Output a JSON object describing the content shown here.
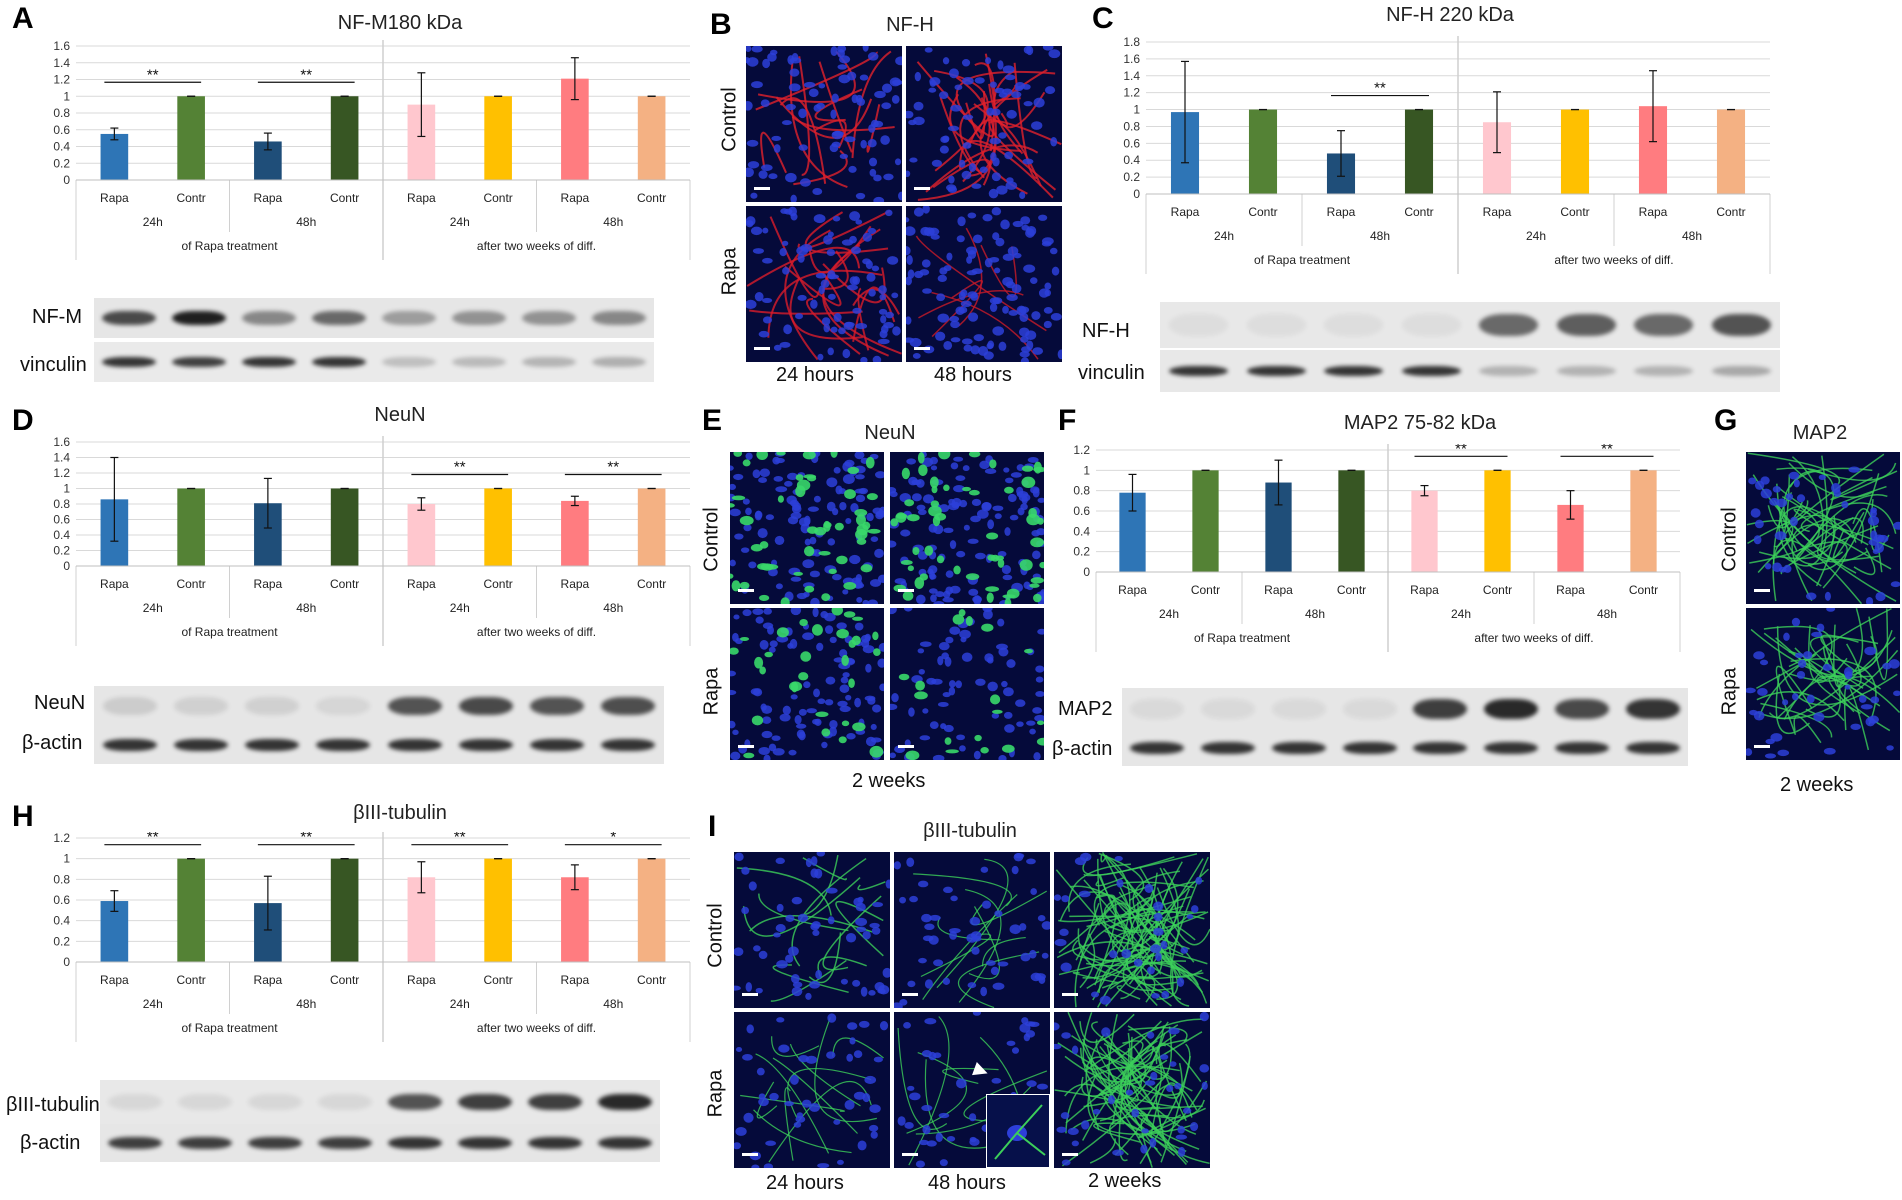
{
  "panels": {
    "A": {
      "letter": "A",
      "title": "NF-M180 kDa",
      "blot_labels": [
        "NF-M",
        "vinculin"
      ]
    },
    "B": {
      "letter": "B",
      "title": "NF-H",
      "rows": [
        "Control",
        "Rapa"
      ],
      "cols": [
        "24 hours",
        "48 hours"
      ]
    },
    "C": {
      "letter": "C",
      "title": "NF-H 220 kDa",
      "blot_labels": [
        "NF-H",
        "vinculin"
      ]
    },
    "D": {
      "letter": "D",
      "title": "NeuN",
      "blot_labels": [
        "NeuN",
        "β-actin"
      ]
    },
    "E": {
      "letter": "E",
      "title": "NeuN",
      "rows": [
        "Control",
        "Rapa"
      ],
      "caption": "2 weeks"
    },
    "F": {
      "letter": "F",
      "title": "MAP2 75-82 kDa",
      "blot_labels": [
        "MAP2",
        "β-actin"
      ]
    },
    "G": {
      "letter": "G",
      "title": "MAP2",
      "rows": [
        "Control",
        "Rapa"
      ],
      "caption": "2 weeks"
    },
    "H": {
      "letter": "H",
      "title": "βIII-tubulin",
      "blot_labels": [
        "βIII-tubulin",
        "β-actin"
      ]
    },
    "I": {
      "letter": "I",
      "title": "βIII-tubulin",
      "rows": [
        "Control",
        "Rapa"
      ],
      "cols": [
        "24 hours",
        "48 hours",
        "2 weeks"
      ]
    }
  },
  "colors": {
    "rapa24_early": "#2e75b6",
    "contr24_early": "#548235",
    "rapa48_early": "#1f4e79",
    "contr48_early": "#375623",
    "rapa24_late": "#ffc7ce",
    "contr24_late": "#ffc000",
    "rapa48_late": "#ff7c80",
    "contr48_late": "#f4b183"
  },
  "chart_data": [
    {
      "id": "A",
      "type": "bar",
      "title": "NF-M180 kDa",
      "categories": [
        "Rapa",
        "Contr",
        "Rapa",
        "Contr",
        "Rapa",
        "Contr",
        "Rapa",
        "Contr"
      ],
      "time_labels": [
        "24h",
        "48h",
        "24h",
        "48h"
      ],
      "group_labels": [
        "of Rapa treatment",
        "after two weeks of diff."
      ],
      "values": [
        0.55,
        1.0,
        0.46,
        1.0,
        0.9,
        1.0,
        1.21,
        1.0
      ],
      "errors": [
        0.07,
        0.0,
        0.1,
        0.0,
        0.38,
        0.0,
        0.25,
        0.0
      ],
      "ylim": [
        0,
        1.6
      ],
      "yticks": [
        "0",
        "0.2",
        "0.4",
        "0.6",
        "0.8",
        "1",
        "1.2",
        "1.4",
        "1.6"
      ],
      "significance": [
        {
          "pair": [
            0,
            1
          ],
          "label": "**"
        },
        {
          "pair": [
            2,
            3
          ],
          "label": "**"
        }
      ]
    },
    {
      "id": "C",
      "type": "bar",
      "title": "NF-H 220 kDa",
      "categories": [
        "Rapa",
        "Contr",
        "Rapa",
        "Contr",
        "Rapa",
        "Contr",
        "Rapa",
        "Contr"
      ],
      "time_labels": [
        "24h",
        "48h",
        "24h",
        "48h"
      ],
      "group_labels": [
        "of Rapa treatment",
        "after two weeks of diff."
      ],
      "values": [
        0.97,
        1.0,
        0.48,
        1.0,
        0.85,
        1.0,
        1.04,
        1.0
      ],
      "errors": [
        0.6,
        0.0,
        0.27,
        0.0,
        0.36,
        0.0,
        0.42,
        0.0
      ],
      "ylim": [
        0,
        1.8
      ],
      "yticks": [
        "0",
        "0.2",
        "0.4",
        "0.6",
        "0.8",
        "1",
        "1.2",
        "1.4",
        "1.6",
        "1.8"
      ],
      "significance": [
        {
          "pair": [
            2,
            3
          ],
          "label": "**"
        }
      ]
    },
    {
      "id": "D",
      "type": "bar",
      "title": "NeuN",
      "categories": [
        "Rapa",
        "Contr",
        "Rapa",
        "Contr",
        "Rapa",
        "Contr",
        "Rapa",
        "Contr"
      ],
      "time_labels": [
        "24h",
        "48h",
        "24h",
        "48h"
      ],
      "group_labels": [
        "of Rapa treatment",
        "after two weeks of diff."
      ],
      "values": [
        0.86,
        1.0,
        0.81,
        1.0,
        0.8,
        1.0,
        0.84,
        1.0
      ],
      "errors": [
        0.54,
        0.0,
        0.32,
        0.0,
        0.08,
        0.0,
        0.06,
        0.0
      ],
      "ylim": [
        0,
        1.6
      ],
      "yticks": [
        "0",
        "0.2",
        "0.4",
        "0.6",
        "0.8",
        "1",
        "1.2",
        "1.4",
        "1.6"
      ],
      "significance": [
        {
          "pair": [
            4,
            5
          ],
          "label": "**"
        },
        {
          "pair": [
            6,
            7
          ],
          "label": "**"
        }
      ]
    },
    {
      "id": "F",
      "type": "bar",
      "title": "MAP2 75-82 kDa",
      "categories": [
        "Rapa",
        "Contr",
        "Rapa",
        "Contr",
        "Rapa",
        "Contr",
        "Rapa",
        "Contr"
      ],
      "time_labels": [
        "24h",
        "48h",
        "24h",
        "48h"
      ],
      "group_labels": [
        "of Rapa treatment",
        "after two weeks of diff."
      ],
      "values": [
        0.78,
        1.0,
        0.88,
        1.0,
        0.8,
        1.0,
        0.66,
        1.0
      ],
      "errors": [
        0.18,
        0.0,
        0.22,
        0.0,
        0.05,
        0.0,
        0.14,
        0.0
      ],
      "ylim": [
        0,
        1.2
      ],
      "yticks": [
        "0",
        "0.2",
        "0.4",
        "0.6",
        "0.8",
        "1",
        "1.2"
      ],
      "significance": [
        {
          "pair": [
            4,
            5
          ],
          "label": "**"
        },
        {
          "pair": [
            6,
            7
          ],
          "label": "**"
        }
      ]
    },
    {
      "id": "H",
      "type": "bar",
      "title": "βIII-tubulin",
      "categories": [
        "Rapa",
        "Contr",
        "Rapa",
        "Contr",
        "Rapa",
        "Contr",
        "Rapa",
        "Contr"
      ],
      "time_labels": [
        "24h",
        "48h",
        "24h",
        "48h"
      ],
      "group_labels": [
        "of Rapa treatment",
        "after two weeks of diff."
      ],
      "values": [
        0.59,
        1.0,
        0.57,
        1.0,
        0.82,
        1.0,
        0.82,
        1.0
      ],
      "errors": [
        0.1,
        0.0,
        0.26,
        0.0,
        0.15,
        0.0,
        0.12,
        0.0
      ],
      "ylim": [
        0,
        1.2
      ],
      "yticks": [
        "0",
        "0.2",
        "0.4",
        "0.6",
        "0.8",
        "1",
        "1.2"
      ],
      "significance": [
        {
          "pair": [
            0,
            1
          ],
          "label": "**"
        },
        {
          "pair": [
            2,
            3
          ],
          "label": "**"
        },
        {
          "pair": [
            4,
            5
          ],
          "label": "**"
        },
        {
          "pair": [
            6,
            7
          ],
          "label": "*"
        }
      ]
    }
  ]
}
